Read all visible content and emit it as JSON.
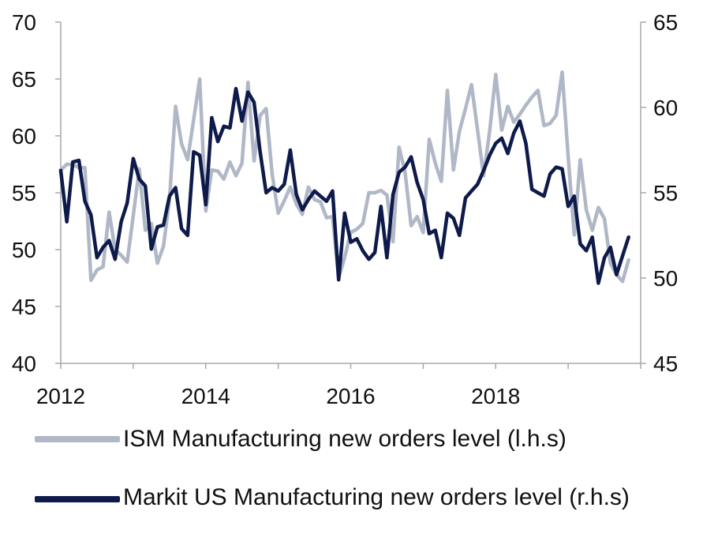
{
  "chart_data": {
    "type": "line",
    "x_start": "2012-01",
    "x_end": "2019-10",
    "x_ticks": [
      "2012",
      "2014",
      "2016",
      "2018"
    ],
    "y_left": {
      "ylim": [
        40,
        70
      ],
      "ticks": [
        "70",
        "65",
        "60",
        "55",
        "50",
        "45",
        "40"
      ]
    },
    "y_right": {
      "ylim": [
        45,
        65
      ],
      "ticks": [
        "65",
        "60",
        "55",
        "50",
        "45"
      ]
    },
    "series": [
      {
        "name": "ISM Manufacturing  new orders level (l.h.s)",
        "axis": "left",
        "color": "#b0b7c6",
        "values": [
          57.0,
          57.5,
          57.5,
          57.2,
          57.2,
          47.3,
          48.2,
          48.5,
          53.3,
          50.0,
          49.5,
          48.9,
          53.0,
          57.1,
          51.7,
          52.3,
          48.8,
          50.3,
          54.4,
          62.6,
          59.3,
          57.9,
          61.4,
          65.0,
          53.4,
          57.0,
          56.9,
          56.2,
          57.7,
          56.5,
          57.6,
          64.7,
          57.8,
          61.8,
          62.4,
          56.6,
          53.2,
          54.3,
          55.5,
          54.0,
          53.1,
          55.5,
          54.4,
          54.2,
          52.8,
          52.9,
          47.5,
          49.3,
          51.5,
          51.8,
          52.3,
          55.0,
          55.0,
          55.2,
          54.8,
          50.7,
          59.0,
          56.8,
          52.1,
          52.9,
          51.5,
          59.7,
          57.6,
          56.0,
          64.0,
          57.0,
          60.4,
          62.4,
          64.5,
          60.5,
          56.5,
          60.4,
          65.4,
          60.5,
          62.6,
          61.2,
          61.9,
          62.7,
          63.4,
          64.0,
          60.9,
          61.1,
          61.8,
          65.6,
          58.2,
          51.3,
          57.9,
          53.5,
          51.7,
          53.7,
          52.7,
          48.8,
          47.8,
          47.2,
          49.1
        ]
      },
      {
        "name": "Markit US Manufacturing new orders level (r.h.s)",
        "axis": "right",
        "color": "#0d1a4a",
        "values": [
          56.3,
          53.3,
          56.8,
          56.9,
          54.5,
          53.7,
          51.2,
          51.8,
          52.2,
          51.1,
          53.3,
          54.4,
          57.0,
          55.8,
          55.4,
          51.7,
          53.0,
          53.1,
          54.8,
          55.3,
          52.9,
          52.5,
          57.4,
          57.2,
          54.3,
          59.4,
          58.0,
          58.9,
          58.8,
          61.1,
          59.2,
          60.9,
          60.3,
          57.4,
          55.0,
          55.3,
          55.1,
          55.5,
          57.5,
          54.9,
          54.0,
          54.6,
          55.1,
          54.8,
          54.5,
          55.1,
          49.9,
          53.8,
          52.1,
          52.3,
          51.6,
          51.1,
          51.5,
          54.2,
          51.2,
          54.9,
          56.2,
          56.5,
          57.1,
          55.6,
          54.6,
          52.6,
          52.8,
          51.2,
          53.8,
          53.5,
          52.5,
          54.7,
          55.1,
          55.5,
          56.3,
          57.2,
          57.9,
          58.2,
          57.3,
          58.5,
          59.2,
          57.9,
          55.2,
          55.0,
          54.8,
          56.1,
          56.5,
          56.4,
          54.2,
          54.8,
          52.0,
          51.6,
          52.4,
          49.7,
          51.2,
          51.8,
          50.2,
          51.3,
          52.4
        ]
      }
    ],
    "legend_position": "bottom",
    "grid": false
  }
}
